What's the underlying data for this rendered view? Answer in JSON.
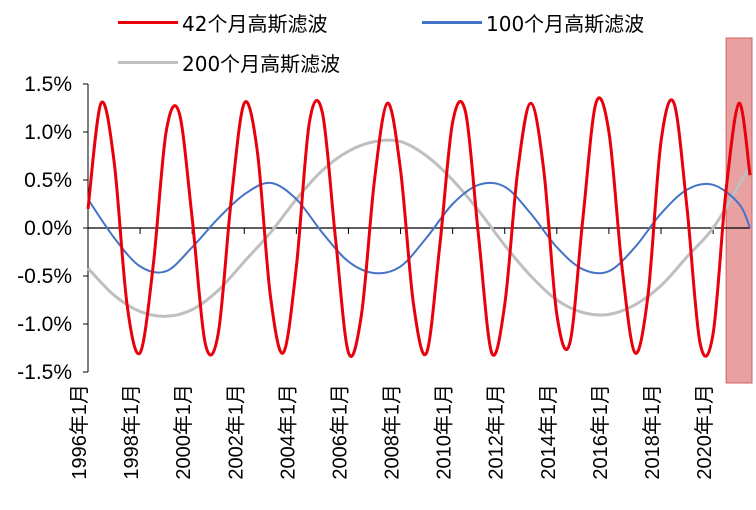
{
  "chart_data": {
    "type": "line",
    "title": "",
    "xlabel": "",
    "ylabel": "",
    "ylim": [
      -0.015,
      0.015
    ],
    "yticks": [
      {
        "value": 0.015,
        "label": "1.5%"
      },
      {
        "value": 0.01,
        "label": "1.0%"
      },
      {
        "value": 0.005,
        "label": "0.5%"
      },
      {
        "value": 0.0,
        "label": "0.0%"
      },
      {
        "value": -0.005,
        "label": "-0.5%"
      },
      {
        "value": -0.01,
        "label": "-1.0%"
      },
      {
        "value": -0.015,
        "label": "-1.5%"
      }
    ],
    "xlim": [
      "1996-01",
      "2021-06"
    ],
    "xticks": [
      "1996年1月",
      "1998年1月",
      "2000年1月",
      "2002年1月",
      "2004年1月",
      "2006年1月",
      "2008年1月",
      "2010年1月",
      "2012年1月",
      "2014年1月",
      "2016年1月",
      "2018年1月",
      "2020年1月"
    ],
    "highlight_range": [
      "2020-07",
      "2021-06"
    ],
    "legend_position": "top",
    "series": [
      {
        "name": "42个月高斯滤波",
        "color": "#e8000b",
        "points": [
          [
            "1996-01",
            0.002
          ],
          [
            "1996-07",
            0.013
          ],
          [
            "1997-01",
            0.007
          ],
          [
            "1997-07",
            -0.008
          ],
          [
            "1998-01",
            -0.013
          ],
          [
            "1998-07",
            -0.004
          ],
          [
            "1999-01",
            0.01
          ],
          [
            "1999-07",
            0.012
          ],
          [
            "2000-01",
            0.001
          ],
          [
            "2000-07",
            -0.012
          ],
          [
            "2001-01",
            -0.011
          ],
          [
            "2001-07",
            0.003
          ],
          [
            "2002-01",
            0.013
          ],
          [
            "2002-07",
            0.008
          ],
          [
            "2003-01",
            -0.007
          ],
          [
            "2003-07",
            -0.013
          ],
          [
            "2004-01",
            -0.004
          ],
          [
            "2004-07",
            0.011
          ],
          [
            "2005-01",
            0.012
          ],
          [
            "2005-07",
            -0.001
          ],
          [
            "2006-01",
            -0.013
          ],
          [
            "2006-07",
            -0.009
          ],
          [
            "2007-01",
            0.005
          ],
          [
            "2007-07",
            0.013
          ],
          [
            "2008-01",
            0.006
          ],
          [
            "2008-07",
            -0.008
          ],
          [
            "2009-01",
            -0.013
          ],
          [
            "2009-07",
            -0.002
          ],
          [
            "2010-01",
            0.011
          ],
          [
            "2010-07",
            0.012
          ],
          [
            "2011-01",
            -0.001
          ],
          [
            "2011-07",
            -0.013
          ],
          [
            "2012-01",
            -0.008
          ],
          [
            "2012-07",
            0.006
          ],
          [
            "2013-01",
            0.013
          ],
          [
            "2013-07",
            0.006
          ],
          [
            "2014-01",
            -0.009
          ],
          [
            "2014-07",
            -0.012
          ],
          [
            "2015-01",
            0.001
          ],
          [
            "2015-07",
            0.013
          ],
          [
            "2016-01",
            0.01
          ],
          [
            "2016-07",
            -0.004
          ],
          [
            "2017-01",
            -0.013
          ],
          [
            "2017-07",
            -0.007
          ],
          [
            "2018-01",
            0.009
          ],
          [
            "2018-07",
            0.013
          ],
          [
            "2019-01",
            0.002
          ],
          [
            "2019-07",
            -0.012
          ],
          [
            "2020-01",
            -0.011
          ],
          [
            "2020-07",
            0.004
          ],
          [
            "2021-01",
            0.013
          ],
          [
            "2021-06",
            0.0055
          ]
        ]
      },
      {
        "name": "100个月高斯滤波",
        "color": "#4472c4",
        "points": [
          [
            "1996-01",
            0.003
          ],
          [
            "1997-01",
            -0.001
          ],
          [
            "1998-01",
            -0.004
          ],
          [
            "1999-01",
            -0.0045
          ],
          [
            "2000-01",
            -0.002
          ],
          [
            "2001-01",
            0.001
          ],
          [
            "2002-01",
            0.0035
          ],
          [
            "2003-01",
            0.0047
          ],
          [
            "2004-01",
            0.003
          ],
          [
            "2005-01",
            -0.0005
          ],
          [
            "2006-01",
            -0.0035
          ],
          [
            "2007-01",
            -0.0047
          ],
          [
            "2008-01",
            -0.004
          ],
          [
            "2009-01",
            -0.001
          ],
          [
            "2010-01",
            0.0025
          ],
          [
            "2011-01",
            0.0045
          ],
          [
            "2012-01",
            0.0043
          ],
          [
            "2013-01",
            0.0015
          ],
          [
            "2014-01",
            -0.002
          ],
          [
            "2015-01",
            -0.0043
          ],
          [
            "2016-01",
            -0.0045
          ],
          [
            "2017-01",
            -0.002
          ],
          [
            "2018-01",
            0.0015
          ],
          [
            "2019-01",
            0.004
          ],
          [
            "2020-01",
            0.0045
          ],
          [
            "2021-01",
            0.0025
          ],
          [
            "2021-06",
            0.0
          ]
        ]
      },
      {
        "name": "200个月高斯滤波",
        "color": "#bfbfbf",
        "points": [
          [
            "1996-01",
            -0.0042
          ],
          [
            "1997-01",
            -0.007
          ],
          [
            "1998-01",
            -0.0087
          ],
          [
            "1999-01",
            -0.0092
          ],
          [
            "2000-01",
            -0.0085
          ],
          [
            "2001-01",
            -0.0065
          ],
          [
            "2002-01",
            -0.0035
          ],
          [
            "2003-01",
            -0.0005
          ],
          [
            "2004-01",
            0.003
          ],
          [
            "2005-01",
            0.006
          ],
          [
            "2006-01",
            0.008
          ],
          [
            "2007-01",
            0.009
          ],
          [
            "2008-01",
            0.009
          ],
          [
            "2009-01",
            0.0075
          ],
          [
            "2010-01",
            0.005
          ],
          [
            "2011-01",
            0.0018
          ],
          [
            "2012-01",
            -0.0018
          ],
          [
            "2013-01",
            -0.005
          ],
          [
            "2014-01",
            -0.0075
          ],
          [
            "2015-01",
            -0.0088
          ],
          [
            "2016-01",
            -0.009
          ],
          [
            "2017-01",
            -0.008
          ],
          [
            "2018-01",
            -0.006
          ],
          [
            "2019-01",
            -0.003
          ],
          [
            "2020-01",
            0.0
          ],
          [
            "2021-01",
            0.0045
          ],
          [
            "2021-06",
            0.0065
          ]
        ]
      }
    ]
  }
}
